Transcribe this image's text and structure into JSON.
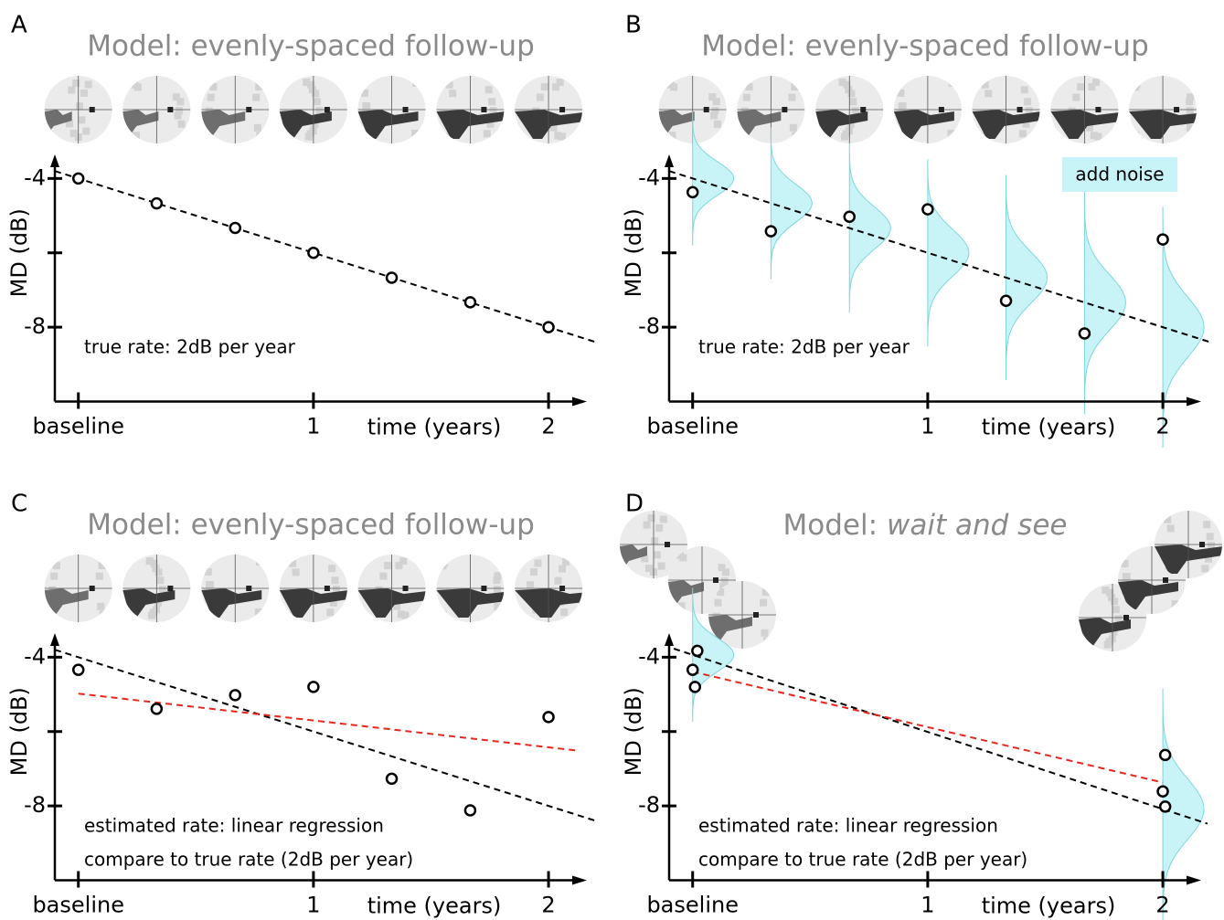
{
  "chart_data": [
    {
      "type": "scatter",
      "panel_label": "A",
      "title": "Model: evenly-spaced follow-up",
      "xlabel": "time (years)",
      "ylabel": "MD (dB)",
      "xlim": [
        -0.1,
        2.2
      ],
      "ylim": [
        -10,
        -3.5
      ],
      "xticks": [
        {
          "value": 0,
          "label": "baseline"
        },
        1,
        2
      ],
      "yticks": [
        -4,
        {
          "value": -6,
          "label": null
        },
        -8
      ],
      "series": [
        {
          "color": "#000000",
          "x": [
            0,
            0.333,
            0.667,
            1,
            1.333,
            1.667,
            2
          ],
          "values": [
            -4,
            -4.67,
            -5.33,
            -6,
            -6.67,
            -7.33,
            -8
          ]
        }
      ],
      "lines": [
        {
          "color": "#000000",
          "x": [
            -0.1,
            2.2
          ],
          "values": [
            -3.8,
            -8.4
          ]
        }
      ],
      "annotations": [
        {
          "text": "true rate: 2dB per year",
          "color": "#000000"
        }
      ]
    },
    {
      "type": "scatter",
      "panel_label": "B",
      "title": "Model: evenly-spaced follow-up",
      "xlabel": "time (years)",
      "ylabel": "MD (dB)",
      "xlim": [
        -0.1,
        2.2
      ],
      "ylim": [
        -10,
        -3.5
      ],
      "xticks": [
        {
          "value": 0,
          "label": "baseline"
        },
        1,
        2
      ],
      "yticks": [
        -4,
        {
          "value": -6,
          "label": null
        },
        -8
      ],
      "series": [
        {
          "color": "#000000",
          "x": [
            0,
            0.333,
            0.667,
            1,
            1.333,
            1.667,
            2
          ],
          "values": [
            -4.37,
            -5.42,
            -5.03,
            -4.83,
            -7.29,
            -8.17,
            -5.64
          ]
        }
      ],
      "lines": [
        {
          "color": "#000000",
          "x": [
            -0.1,
            2.2
          ],
          "values": [
            -3.8,
            -8.4
          ]
        }
      ],
      "noise_x": [
        0,
        0.333,
        0.667,
        1,
        1.333,
        1.667,
        2
      ],
      "noise_color": "#c9f4f7",
      "annotations": [
        {
          "text": "add noise",
          "color": "#000000",
          "boxed": true
        },
        {
          "text": "true rate: 2dB per year",
          "color": "#000000"
        }
      ]
    },
    {
      "type": "scatter",
      "panel_label": "C",
      "title": "Model: evenly-spaced follow-up",
      "xlabel": "time (years)",
      "ylabel": "MD (dB)",
      "xlim": [
        -0.1,
        2.2
      ],
      "ylim": [
        -10,
        -3.5
      ],
      "xticks": [
        {
          "value": 0,
          "label": "baseline"
        },
        1,
        2
      ],
      "yticks": [
        -4,
        {
          "value": -6,
          "label": null
        },
        -8
      ],
      "series": [
        {
          "color": "#000000",
          "x": [
            0,
            0.333,
            0.667,
            1,
            1.333,
            1.667,
            2
          ],
          "values": [
            -4.34,
            -5.39,
            -5.02,
            -4.8,
            -7.27,
            -8.12,
            -5.61
          ]
        }
      ],
      "lines": [
        {
          "color": "#000000",
          "x": [
            -0.1,
            2.2
          ],
          "values": [
            -3.8,
            -8.4
          ]
        },
        {
          "color": "#e8261c",
          "x": [
            0,
            2.12
          ],
          "values": [
            -4.98,
            -6.51
          ]
        }
      ],
      "annotations": [
        {
          "text": "estimated rate: linear regression",
          "color": "#e8261c"
        },
        {
          "text": "compare to true rate (2dB per year)",
          "color": "#000000"
        }
      ]
    },
    {
      "type": "scatter",
      "panel_label": "D",
      "title_prefix": "Model:",
      "title_emphasis": "wait and see",
      "xlabel": "time (years)",
      "ylabel": "MD (dB)",
      "xlim": [
        -0.1,
        2.2
      ],
      "ylim": [
        -10,
        -3.5
      ],
      "xticks": [
        {
          "value": 0,
          "label": "baseline"
        },
        1,
        2
      ],
      "yticks": [
        -4,
        {
          "value": -6,
          "label": null
        },
        -8
      ],
      "series": [
        {
          "color": "#000000",
          "x": [
            0.02,
            0,
            0.01,
            2.01,
            2,
            2.01
          ],
          "values": [
            -3.83,
            -4.34,
            -4.8,
            -6.63,
            -7.61,
            -8.02
          ]
        }
      ],
      "lines": [
        {
          "color": "#000000",
          "x": [
            -0.08,
            2.19
          ],
          "values": [
            -3.77,
            -8.48
          ]
        },
        {
          "color": "#e8261c",
          "x": [
            0,
            2
          ],
          "values": [
            -4.39,
            -7.37
          ]
        }
      ],
      "noise_x": [
        0,
        2
      ],
      "noise_color": "#c9f4f7",
      "annotations": [
        {
          "text": "estimated rate: linear regression",
          "color": "#e8261c"
        },
        {
          "text": "compare to true rate (2dB per year)",
          "color": "#000000"
        }
      ]
    }
  ]
}
